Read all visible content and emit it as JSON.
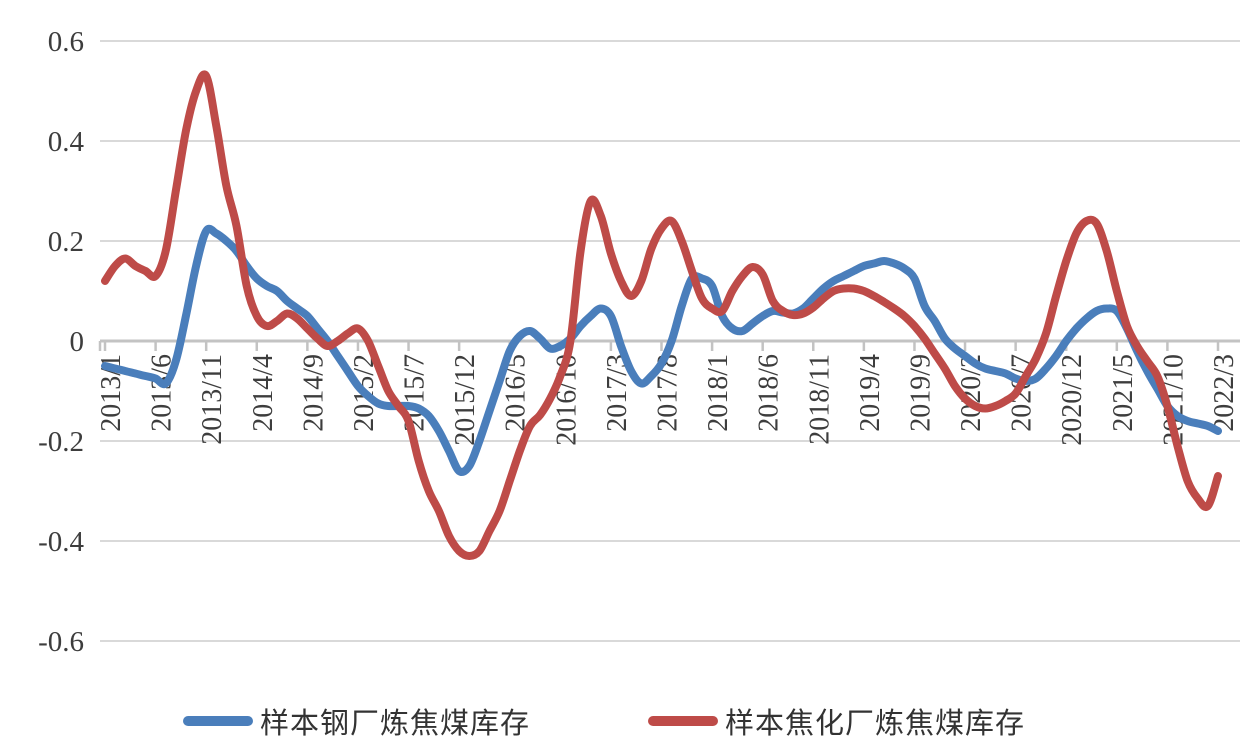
{
  "chart_data": {
    "type": "line",
    "title": "",
    "xlabel": "",
    "ylabel": "",
    "grid": "horizontal",
    "legend_position": "bottom",
    "background_color": "#ffffff",
    "gridline_color": "#d9d9d9",
    "axis_color": "#c3c3c3",
    "tick_label_color": "#3d3d3d",
    "ylim": [
      -0.7,
      0.66
    ],
    "y_ticks": [
      "0.6",
      "0.4",
      "0.2",
      "0",
      "-0.2",
      "-0.4",
      "-0.6"
    ],
    "y_tick_values": [
      0.6,
      0.4,
      0.2,
      0,
      -0.2,
      -0.4,
      -0.6
    ],
    "x_tick_labels": [
      "2013/1",
      "2013/6",
      "2013/11",
      "2014/4",
      "2014/9",
      "2015/2",
      "2015/7",
      "2015/12",
      "2016/5",
      "2016/10",
      "2017/3",
      "2017/8",
      "2018/1",
      "2018/6",
      "2018/11",
      "2019/4",
      "2019/9",
      "2020/2",
      "2020/7",
      "2020/12",
      "2021/5",
      "2021/10",
      "2022/3"
    ],
    "x_tick_every": 5,
    "x": [
      "2013/1",
      "2013/2",
      "2013/3",
      "2013/4",
      "2013/5",
      "2013/6",
      "2013/7",
      "2013/8",
      "2013/9",
      "2013/10",
      "2013/11",
      "2013/12",
      "2014/1",
      "2014/2",
      "2014/3",
      "2014/4",
      "2014/5",
      "2014/6",
      "2014/7",
      "2014/8",
      "2014/9",
      "2014/10",
      "2014/11",
      "2014/12",
      "2015/1",
      "2015/2",
      "2015/3",
      "2015/4",
      "2015/5",
      "2015/6",
      "2015/7",
      "2015/8",
      "2015/9",
      "2015/10",
      "2015/11",
      "2015/12",
      "2016/1",
      "2016/2",
      "2016/3",
      "2016/4",
      "2016/5",
      "2016/6",
      "2016/7",
      "2016/8",
      "2016/9",
      "2016/10",
      "2016/11",
      "2016/12",
      "2017/1",
      "2017/2",
      "2017/3",
      "2017/4",
      "2017/5",
      "2017/6",
      "2017/7",
      "2017/8",
      "2017/9",
      "2017/10",
      "2017/11",
      "2017/12",
      "2018/1",
      "2018/2",
      "2018/3",
      "2018/4",
      "2018/5",
      "2018/6",
      "2018/7",
      "2018/8",
      "2018/9",
      "2018/10",
      "2018/11",
      "2018/12",
      "2019/1",
      "2019/2",
      "2019/3",
      "2019/4",
      "2019/5",
      "2019/6",
      "2019/7",
      "2019/8",
      "2019/9",
      "2019/10",
      "2019/11",
      "2019/12",
      "2020/1",
      "2020/2",
      "2020/3",
      "2020/4",
      "2020/5",
      "2020/6",
      "2020/7",
      "2020/8",
      "2020/9",
      "2020/10",
      "2020/11",
      "2020/12",
      "2021/1",
      "2021/2",
      "2021/3",
      "2021/4",
      "2021/5",
      "2021/6",
      "2021/7",
      "2021/8",
      "2021/9",
      "2021/10",
      "2021/11",
      "2021/12",
      "2022/1",
      "2022/2",
      "2022/3"
    ],
    "series": [
      {
        "name": "样本钢厂炼焦煤库存",
        "color": "#4a7ebb",
        "line_width": 8,
        "values": [
          -0.05,
          -0.055,
          -0.06,
          -0.065,
          -0.07,
          -0.075,
          -0.085,
          -0.04,
          0.05,
          0.15,
          0.22,
          0.215,
          0.2,
          0.18,
          0.15,
          0.125,
          0.11,
          0.1,
          0.08,
          0.065,
          0.05,
          0.025,
          0.0,
          -0.03,
          -0.06,
          -0.09,
          -0.11,
          -0.125,
          -0.13,
          -0.13,
          -0.13,
          -0.135,
          -0.15,
          -0.18,
          -0.22,
          -0.26,
          -0.25,
          -0.2,
          -0.14,
          -0.08,
          -0.02,
          0.01,
          0.02,
          0.005,
          -0.015,
          -0.01,
          0.005,
          0.03,
          0.05,
          0.065,
          0.05,
          -0.01,
          -0.06,
          -0.085,
          -0.07,
          -0.045,
          0.0,
          0.07,
          0.125,
          0.125,
          0.11,
          0.05,
          0.025,
          0.02,
          0.035,
          0.05,
          0.06,
          0.057,
          0.055,
          0.065,
          0.085,
          0.105,
          0.12,
          0.13,
          0.14,
          0.15,
          0.155,
          0.16,
          0.155,
          0.145,
          0.125,
          0.07,
          0.04,
          0.005,
          -0.015,
          -0.03,
          -0.045,
          -0.055,
          -0.06,
          -0.065,
          -0.075,
          -0.08,
          -0.075,
          -0.055,
          -0.03,
          0.0,
          0.025,
          0.045,
          0.06,
          0.065,
          0.06,
          0.025,
          -0.02,
          -0.06,
          -0.095,
          -0.13,
          -0.15,
          -0.16,
          -0.165,
          -0.17,
          -0.18
        ]
      },
      {
        "name": "样本焦化厂炼焦煤库存",
        "color": "#be4b48",
        "line_width": 8,
        "values": [
          0.12,
          0.15,
          0.165,
          0.15,
          0.14,
          0.13,
          0.18,
          0.3,
          0.42,
          0.5,
          0.53,
          0.43,
          0.31,
          0.23,
          0.11,
          0.05,
          0.03,
          0.04,
          0.055,
          0.045,
          0.025,
          0.005,
          -0.01,
          0.0,
          0.015,
          0.025,
          0.0,
          -0.05,
          -0.1,
          -0.13,
          -0.16,
          -0.24,
          -0.3,
          -0.34,
          -0.39,
          -0.42,
          -0.43,
          -0.42,
          -0.38,
          -0.34,
          -0.28,
          -0.22,
          -0.17,
          -0.148,
          -0.115,
          -0.07,
          0.0,
          0.18,
          0.28,
          0.25,
          0.175,
          0.12,
          0.09,
          0.12,
          0.185,
          0.225,
          0.24,
          0.2,
          0.14,
          0.085,
          0.065,
          0.06,
          0.1,
          0.13,
          0.148,
          0.133,
          0.08,
          0.06,
          0.052,
          0.055,
          0.067,
          0.085,
          0.1,
          0.105,
          0.105,
          0.1,
          0.09,
          0.078,
          0.065,
          0.05,
          0.03,
          0.005,
          -0.025,
          -0.055,
          -0.09,
          -0.115,
          -0.13,
          -0.135,
          -0.13,
          -0.12,
          -0.105,
          -0.07,
          -0.035,
          0.015,
          0.09,
          0.16,
          0.215,
          0.24,
          0.235,
          0.18,
          0.1,
          0.03,
          -0.01,
          -0.04,
          -0.07,
          -0.13,
          -0.21,
          -0.28,
          -0.315,
          -0.33,
          -0.27
        ]
      }
    ]
  }
}
